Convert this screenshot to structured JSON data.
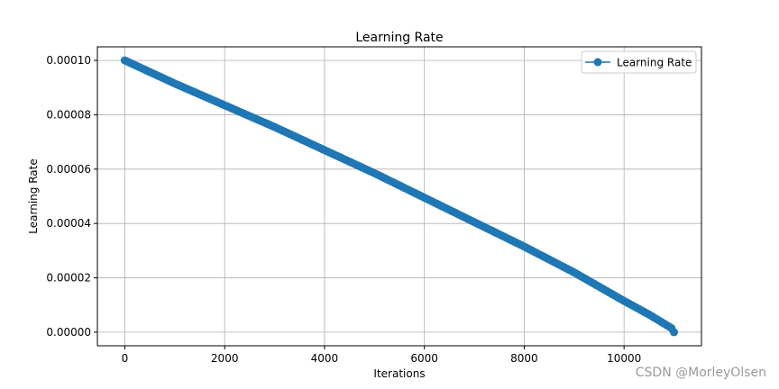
{
  "chart_data": {
    "type": "line",
    "title": "Learning Rate",
    "xlabel": "Iterations",
    "ylabel": "Learning Rate",
    "xlim": [
      -550,
      11550
    ],
    "ylim": [
      -5e-06,
      0.000105
    ],
    "xticks": [
      0,
      2000,
      4000,
      6000,
      8000,
      10000
    ],
    "xtick_labels": [
      "0",
      "2000",
      "4000",
      "6000",
      "8000",
      "10000"
    ],
    "yticks": [
      0,
      2e-05,
      4e-05,
      6e-05,
      8e-05,
      0.0001
    ],
    "ytick_labels": [
      "0.00000",
      "0.00002",
      "0.00004",
      "0.00006",
      "0.00008",
      "0.00010"
    ],
    "grid": true,
    "legend": {
      "position": "top-right",
      "entries": [
        "Learning Rate"
      ]
    },
    "series": [
      {
        "name": "Learning Rate",
        "color": "#1f77b4",
        "marker": "o",
        "x": [
          0,
          1000,
          2000,
          3000,
          4000,
          5000,
          6000,
          7000,
          8000,
          9000,
          10000,
          10500,
          10950,
          11000
        ],
        "y": [
          0.0001,
          9.15e-05,
          8.35e-05,
          7.55e-05,
          6.7e-05,
          5.85e-05,
          4.95e-05,
          4.05e-05,
          3.15e-05,
          2.2e-05,
          1.15e-05,
          6.5e-06,
          1.5e-06,
          0.0
        ]
      }
    ]
  },
  "watermark": "CSDN @MorleyOlsen"
}
